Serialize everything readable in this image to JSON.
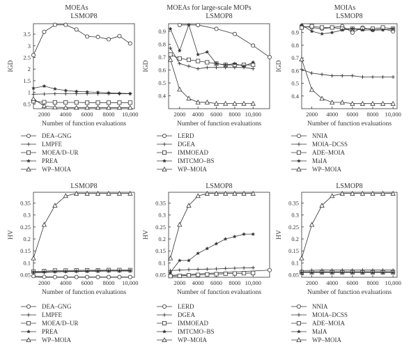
{
  "column_titles": [
    "MOEAs",
    "MOEAs for large-scale MOPs",
    "MOIAs"
  ],
  "chart_data": [
    {
      "type": "line",
      "title": "LSMOP8",
      "ylabel": "IGD",
      "xlabel": "Number of function evaluations",
      "xlim": [
        1000,
        10400
      ],
      "ylim": [
        0.3,
        3.95
      ],
      "xticks": [
        2000,
        4000,
        6000,
        8000,
        10000
      ],
      "xtick_labels": [
        "2000",
        "4000",
        "6000",
        "8000",
        "10,000"
      ],
      "yticks": [
        0.5,
        1,
        1.5,
        2,
        2.5,
        3,
        3.5
      ],
      "ytick_labels": [
        "0.5",
        "1",
        "1.5",
        "2",
        "2.5",
        "3",
        "3.5"
      ],
      "x": [
        1000,
        2000,
        3000,
        4000,
        5000,
        6000,
        7000,
        8000,
        9000,
        10000
      ],
      "series": [
        {
          "name": "DEA–GNG",
          "marker": "circle",
          "values": [
            2.6,
            3.6,
            3.9,
            3.9,
            3.7,
            3.4,
            3.38,
            3.28,
            3.42,
            3.1
          ]
        },
        {
          "name": "LMPFE",
          "marker": "plus",
          "values": [
            0.92,
            0.93,
            0.94,
            0.94,
            0.94,
            0.94,
            0.94,
            0.94,
            0.94,
            0.94
          ]
        },
        {
          "name": "MOEA/D–UR",
          "marker": "square",
          "values": [
            0.62,
            0.58,
            0.57,
            0.57,
            0.57,
            0.56,
            0.56,
            0.56,
            0.56,
            0.56
          ]
        },
        {
          "name": "PREA",
          "marker": "star",
          "values": [
            1.18,
            1.27,
            1.15,
            1.08,
            1.04,
            1.02,
            1.0,
            0.98,
            0.96,
            0.95
          ]
        },
        {
          "name": "WP–MOIA",
          "marker": "triangle",
          "values": [
            0.72,
            0.42,
            0.36,
            0.35,
            0.35,
            0.35,
            0.35,
            0.35,
            0.35,
            0.35
          ]
        }
      ]
    },
    {
      "type": "line",
      "title": "LSMOP8",
      "ylabel": "IGD",
      "xlabel": "Number of function evaluations",
      "xlim": [
        800,
        11800
      ],
      "ylim": [
        0.3,
        0.96
      ],
      "xticks": [
        2000,
        4000,
        6000,
        8000,
        10000
      ],
      "xtick_labels": [
        "2000",
        "4000",
        "6000",
        "8000",
        "10,000"
      ],
      "yticks": [
        0.4,
        0.5,
        0.6,
        0.7,
        0.8,
        0.9
      ],
      "ytick_labels": [
        "0.4",
        "0.5",
        "0.6",
        "0.7",
        "0.8",
        "0.9"
      ],
      "series": [
        {
          "name": "LERD",
          "marker": "circle",
          "x": [
            2000,
            4000,
            6000,
            8000,
            10000,
            11800
          ],
          "values": [
            0.95,
            0.95,
            0.92,
            0.88,
            0.79,
            0.7
          ]
        },
        {
          "name": "DGEA",
          "marker": "plus",
          "x": [
            1000,
            2000,
            3000,
            4000,
            5000,
            6000,
            7000,
            8000,
            9000,
            10000
          ],
          "values": [
            0.77,
            0.65,
            0.63,
            0.61,
            0.62,
            0.62,
            0.62,
            0.62,
            0.62,
            0.61
          ]
        },
        {
          "name": "IMMOEAD",
          "marker": "square",
          "x": [
            1000,
            2000,
            3000,
            4000,
            5000,
            6000,
            7000,
            8000,
            9000,
            10000
          ],
          "values": [
            0.72,
            0.69,
            0.68,
            0.67,
            0.66,
            0.65,
            0.64,
            0.64,
            0.64,
            0.64
          ]
        },
        {
          "name": "IMTCMO–BS",
          "marker": "star",
          "x": [
            1000,
            2000,
            3000,
            4000,
            5000,
            6000,
            7000,
            8000,
            9000,
            10000
          ],
          "values": [
            0.92,
            0.75,
            0.95,
            0.72,
            0.74,
            0.65,
            0.64,
            0.65,
            0.63,
            0.66
          ]
        },
        {
          "name": "WP–MOIA",
          "marker": "triangle",
          "x": [
            1000,
            2000,
            3000,
            4000,
            5000,
            6000,
            7000,
            8000,
            9000,
            10000
          ],
          "values": [
            0.68,
            0.45,
            0.38,
            0.35,
            0.35,
            0.34,
            0.34,
            0.34,
            0.34,
            0.34
          ]
        }
      ]
    },
    {
      "type": "line",
      "title": "LSMOP8",
      "ylabel": "IGD",
      "xlabel": "Number of function evaluations",
      "xlim": [
        1000,
        10400
      ],
      "ylim": [
        0.3,
        0.97
      ],
      "xticks": [
        2000,
        4000,
        6000,
        8000,
        10000
      ],
      "xtick_labels": [
        "2000",
        "4000",
        "6000",
        "8000",
        "10,000"
      ],
      "yticks": [
        0.4,
        0.5,
        0.6,
        0.7,
        0.8,
        0.9
      ],
      "ytick_labels": [
        "0.4",
        "0.5",
        "0.6",
        "0.7",
        "0.8",
        "0.9"
      ],
      "x": [
        1000,
        2000,
        3000,
        4000,
        5000,
        6000,
        7000,
        8000,
        9000,
        10000
      ],
      "series": [
        {
          "name": "NNIA",
          "marker": "circle",
          "values": [
            0.95,
            0.94,
            0.93,
            0.94,
            0.95,
            0.9,
            0.94,
            0.92,
            0.93,
            0.91
          ]
        },
        {
          "name": "MOIA–DCSS",
          "marker": "plus",
          "values": [
            0.61,
            0.58,
            0.57,
            0.56,
            0.56,
            0.56,
            0.55,
            0.55,
            0.55,
            0.55
          ]
        },
        {
          "name": "ADE–MOIA",
          "marker": "square",
          "values": [
            0.94,
            0.95,
            0.94,
            0.94,
            0.93,
            0.93,
            0.93,
            0.93,
            0.94,
            0.93
          ]
        },
        {
          "name": "MaIA",
          "marker": "star",
          "values": [
            0.96,
            0.91,
            0.89,
            0.9,
            0.92,
            0.93,
            0.92,
            0.92,
            0.92,
            0.93
          ]
        },
        {
          "name": "WP–MOIA",
          "marker": "triangle",
          "values": [
            0.69,
            0.45,
            0.38,
            0.35,
            0.35,
            0.34,
            0.34,
            0.34,
            0.34,
            0.34
          ]
        }
      ]
    },
    {
      "type": "line",
      "title": "LSMOP8",
      "ylabel": "HV",
      "xlabel": "Number of function evaluations",
      "xlim": [
        1000,
        10400
      ],
      "ylim": [
        0.04,
        0.395
      ],
      "xticks": [
        2000,
        4000,
        6000,
        8000,
        10000
      ],
      "xtick_labels": [
        "2000",
        "4000",
        "6000",
        "8000",
        "10,000"
      ],
      "yticks": [
        0.05,
        0.1,
        0.15,
        0.2,
        0.25,
        0.3,
        0.35
      ],
      "ytick_labels": [
        "0.05",
        "0.1",
        "0.15",
        "0.2",
        "0.25",
        "0.3",
        "0.35"
      ],
      "x": [
        1000,
        2000,
        3000,
        4000,
        5000,
        6000,
        7000,
        8000,
        9000,
        10000
      ],
      "series": [
        {
          "name": "DEA–GNG",
          "marker": "circle",
          "values": [
            0.045,
            0.042,
            0.041,
            0.041,
            0.041,
            0.041,
            0.041,
            0.041,
            0.041,
            0.041
          ]
        },
        {
          "name": "LMPFE",
          "marker": "plus",
          "values": [
            0.058,
            0.06,
            0.062,
            0.064,
            0.064,
            0.065,
            0.065,
            0.066,
            0.066,
            0.066
          ]
        },
        {
          "name": "MOEA/D–UR",
          "marker": "square",
          "values": [
            0.064,
            0.066,
            0.068,
            0.068,
            0.069,
            0.069,
            0.069,
            0.07,
            0.07,
            0.07
          ]
        },
        {
          "name": "PREA",
          "marker": "star",
          "values": [
            0.062,
            0.063,
            0.064,
            0.065,
            0.066,
            0.066,
            0.067,
            0.067,
            0.067,
            0.068
          ]
        },
        {
          "name": "WP–MOIA",
          "marker": "triangle",
          "values": [
            0.12,
            0.26,
            0.34,
            0.38,
            0.39,
            0.39,
            0.39,
            0.39,
            0.39,
            0.39
          ]
        }
      ]
    },
    {
      "type": "line",
      "title": "LSMOP8",
      "ylabel": "HV",
      "xlabel": "Number of function evaluations",
      "xlim": [
        800,
        11800
      ],
      "ylim": [
        0.04,
        0.395
      ],
      "xticks": [
        2000,
        4000,
        6000,
        8000,
        10000
      ],
      "xtick_labels": [
        "2000",
        "4000",
        "6000",
        "8000",
        "10,000"
      ],
      "yticks": [
        0.05,
        0.1,
        0.15,
        0.2,
        0.25,
        0.3,
        0.35
      ],
      "ytick_labels": [
        "0.05",
        "0.1",
        "0.15",
        "0.2",
        "0.25",
        "0.3",
        "0.35"
      ],
      "series": [
        {
          "name": "LERD",
          "marker": "circle",
          "x": [
            1000,
            11800
          ],
          "values": [
            0.048,
            0.07
          ]
        },
        {
          "name": "DGEA",
          "marker": "plus",
          "x": [
            1000,
            2000,
            3000,
            4000,
            5000,
            6000,
            7000,
            8000,
            9000,
            10000
          ],
          "values": [
            0.068,
            0.07,
            0.072,
            0.073,
            0.074,
            0.075,
            0.077,
            0.078,
            0.079,
            0.08
          ]
        },
        {
          "name": "IMMOEAD",
          "marker": "square",
          "x": [
            1000,
            2000,
            3000,
            4000,
            5000,
            6000,
            7000,
            8000,
            9000,
            10000
          ],
          "values": [
            0.045,
            0.046,
            0.048,
            0.05,
            0.052,
            0.053,
            0.055,
            0.056,
            0.057,
            0.058
          ]
        },
        {
          "name": "IMTCMO–BS",
          "marker": "star",
          "x": [
            1000,
            2000,
            3000,
            4000,
            5000,
            6000,
            7000,
            8000,
            9000,
            10000
          ],
          "values": [
            0.06,
            0.11,
            0.11,
            0.14,
            0.16,
            0.18,
            0.2,
            0.21,
            0.22,
            0.22
          ]
        },
        {
          "name": "WP–MOIA",
          "marker": "triangle",
          "x": [
            1000,
            2000,
            3000,
            4000,
            5000,
            6000,
            7000,
            8000,
            9000,
            10000
          ],
          "values": [
            0.12,
            0.26,
            0.34,
            0.38,
            0.39,
            0.39,
            0.39,
            0.39,
            0.39,
            0.39
          ]
        }
      ]
    },
    {
      "type": "line",
      "title": "LSMOP8",
      "ylabel": "HV",
      "xlabel": "Number of function evaluations",
      "xlim": [
        1000,
        10400
      ],
      "ylim": [
        0.04,
        0.395
      ],
      "xticks": [
        2000,
        4000,
        6000,
        8000,
        10000
      ],
      "xtick_labels": [
        "2000",
        "4000",
        "6000",
        "8000",
        "10,000"
      ],
      "yticks": [
        0.05,
        0.1,
        0.15,
        0.2,
        0.25,
        0.3,
        0.35
      ],
      "ytick_labels": [
        "0.05",
        "0.1",
        "0.15",
        "0.2",
        "0.25",
        "0.3",
        "0.35"
      ],
      "x": [
        1000,
        2000,
        3000,
        4000,
        5000,
        6000,
        7000,
        8000,
        9000,
        10000
      ],
      "series": [
        {
          "name": "NNIA",
          "marker": "circle",
          "values": [
            0.063,
            0.063,
            0.063,
            0.063,
            0.063,
            0.063,
            0.063,
            0.063,
            0.063,
            0.063
          ]
        },
        {
          "name": "MOIA–DCSS",
          "marker": "plus",
          "values": [
            0.068,
            0.069,
            0.07,
            0.07,
            0.07,
            0.07,
            0.07,
            0.07,
            0.07,
            0.07
          ]
        },
        {
          "name": "ADE–MOIA",
          "marker": "square",
          "values": [
            0.061,
            0.061,
            0.061,
            0.061,
            0.061,
            0.061,
            0.061,
            0.061,
            0.061,
            0.061
          ]
        },
        {
          "name": "MaIA",
          "marker": "star",
          "values": [
            0.06,
            0.06,
            0.06,
            0.06,
            0.06,
            0.06,
            0.06,
            0.06,
            0.06,
            0.06
          ]
        },
        {
          "name": "WP–MOIA",
          "marker": "triangle",
          "values": [
            0.12,
            0.26,
            0.34,
            0.38,
            0.39,
            0.39,
            0.39,
            0.39,
            0.39,
            0.39
          ]
        }
      ]
    }
  ]
}
